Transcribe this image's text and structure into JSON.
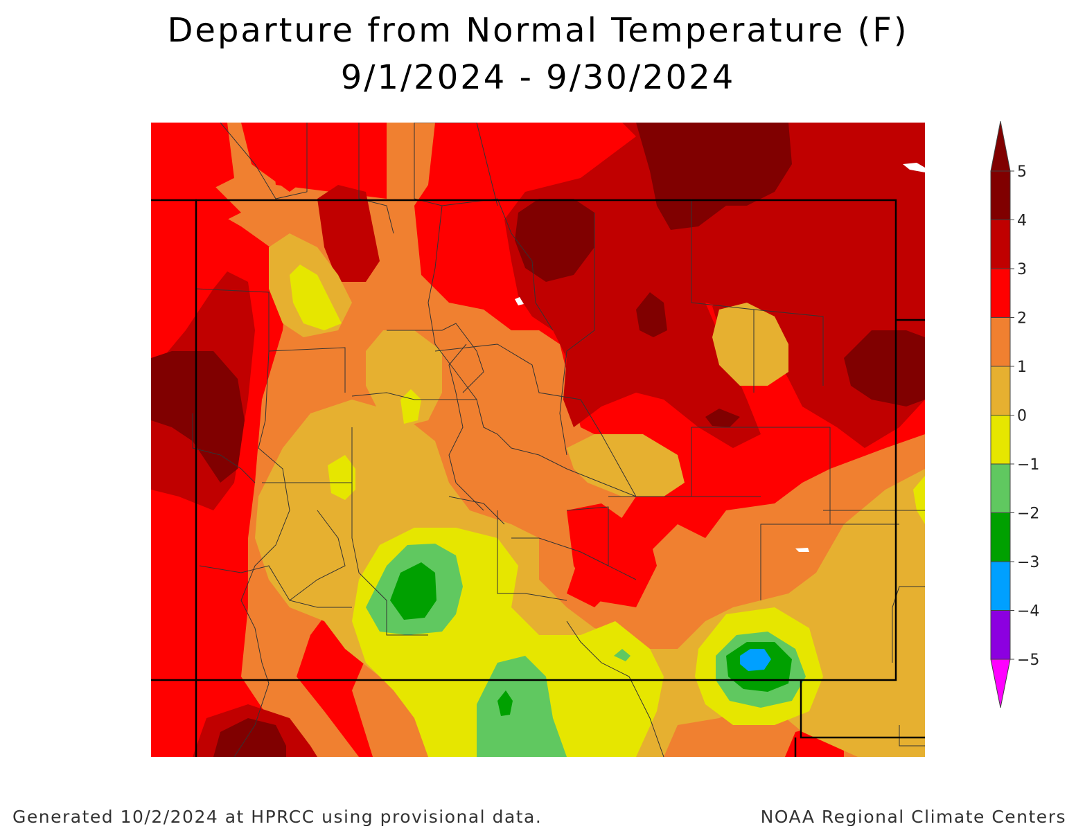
{
  "title": {
    "line1": "Departure from Normal Temperature (F)",
    "line2": "9/1/2024 - 9/30/2024"
  },
  "footer": {
    "left": "Generated 10/2/2024 at HPRCC using provisional data.",
    "right": "NOAA Regional Climate Centers"
  },
  "legend": {
    "units": "F",
    "levels": [
      {
        "label": "5",
        "color": "#800000"
      },
      {
        "label": "4",
        "color": "#c00000"
      },
      {
        "label": "3",
        "color": "#ff0000"
      },
      {
        "label": "2",
        "color": "#f08030"
      },
      {
        "label": "1",
        "color": "#e6b030"
      },
      {
        "label": "0",
        "color": "#e6e600"
      },
      {
        "label": "−1",
        "color": "#60c860"
      },
      {
        "label": "−2",
        "color": "#00a000"
      },
      {
        "label": "−3",
        "color": "#00a0ff"
      },
      {
        "label": "−4",
        "color": "#8c00e0"
      },
      {
        "label": "−5",
        "color": "#a000c8"
      }
    ],
    "low_arrow_color": "#ff00ff",
    "high_arrow_color": "#800000"
  }
}
